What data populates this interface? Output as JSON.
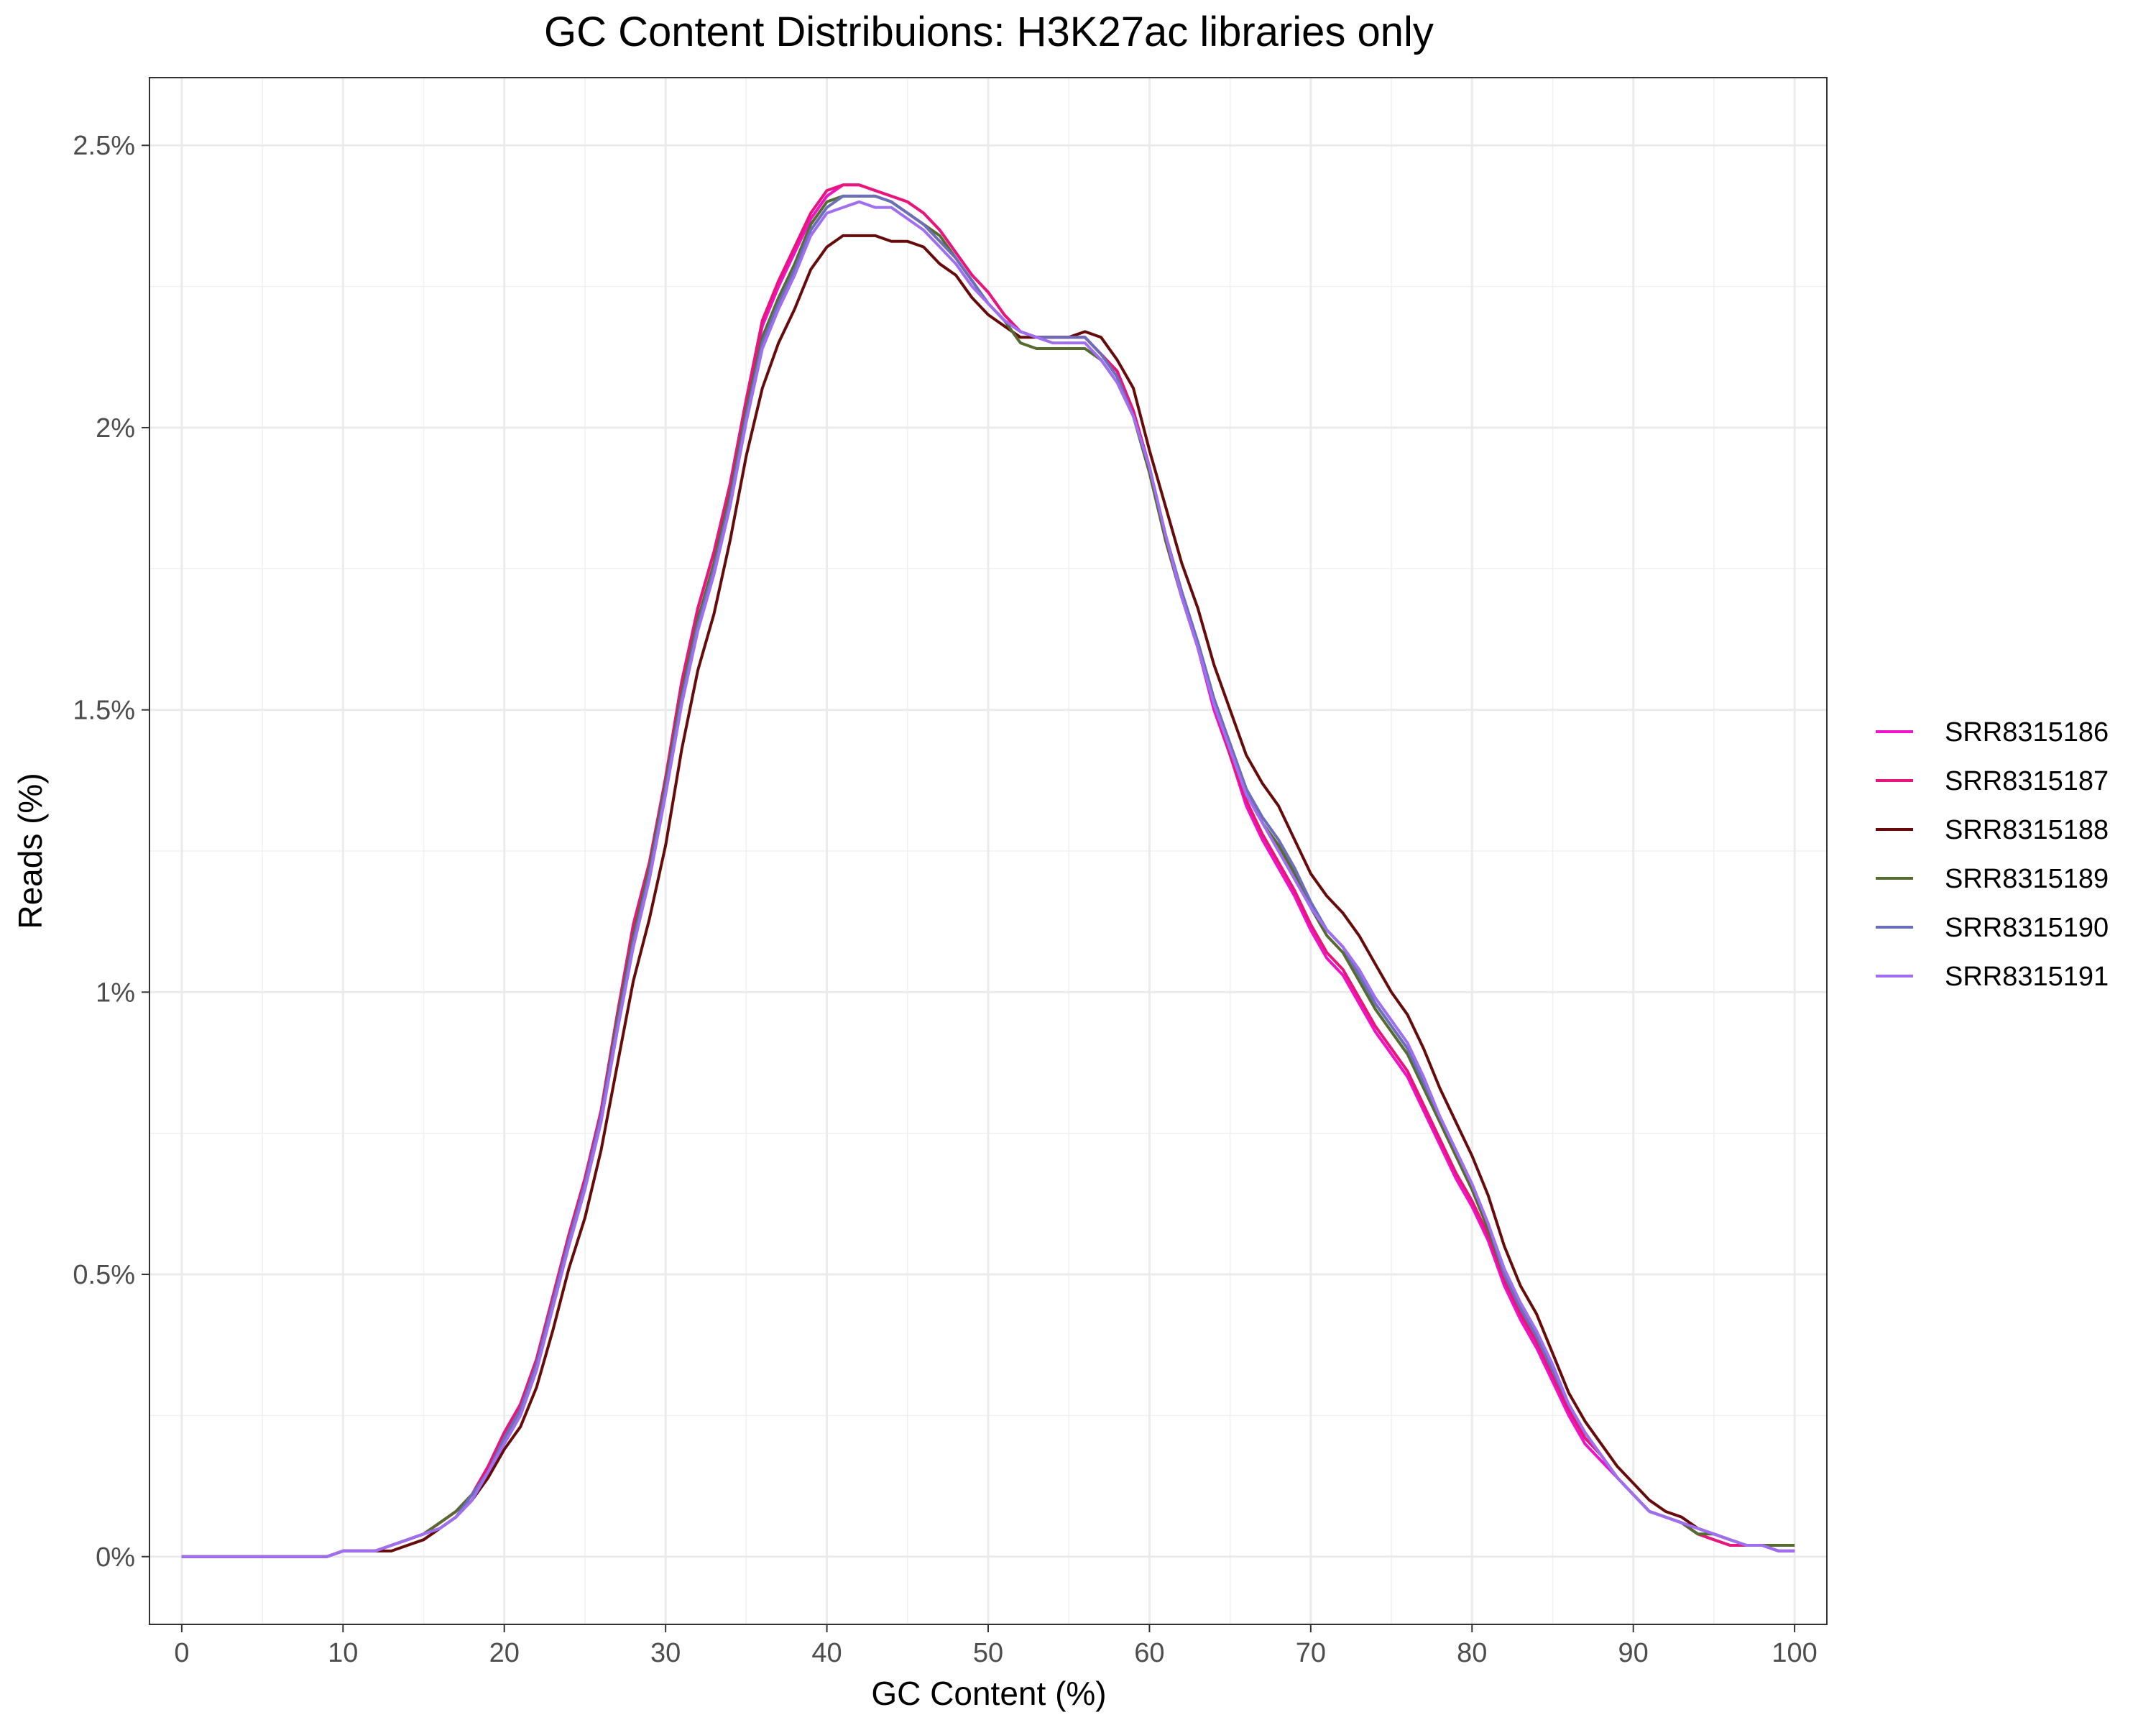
{
  "chart_data": {
    "type": "line",
    "title": "GC Content Distribuions: H3K27ac libraries only",
    "xlabel": "GC Content (%)",
    "ylabel": "Reads (%)",
    "xlim": [
      -2,
      102
    ],
    "ylim": [
      -0.12,
      2.62
    ],
    "x_ticks": [
      0,
      10,
      20,
      30,
      40,
      50,
      60,
      70,
      80,
      90,
      100
    ],
    "y_ticks": [
      0,
      0.5,
      1,
      1.5,
      2,
      2.5
    ],
    "y_tick_labels": [
      "0%",
      "0.5%",
      "1%",
      "1.5%",
      "2%",
      "2.5%"
    ],
    "grid": true,
    "legend_position": "right",
    "x": [
      0,
      1,
      2,
      3,
      4,
      5,
      6,
      7,
      8,
      9,
      10,
      11,
      12,
      13,
      14,
      15,
      16,
      17,
      18,
      19,
      20,
      21,
      22,
      23,
      24,
      25,
      26,
      27,
      28,
      29,
      30,
      31,
      32,
      33,
      34,
      35,
      36,
      37,
      38,
      39,
      40,
      41,
      42,
      43,
      44,
      45,
      46,
      47,
      48,
      49,
      50,
      51,
      52,
      53,
      54,
      55,
      56,
      57,
      58,
      59,
      60,
      61,
      62,
      63,
      64,
      65,
      66,
      67,
      68,
      69,
      70,
      71,
      72,
      73,
      74,
      75,
      76,
      77,
      78,
      79,
      80,
      81,
      82,
      83,
      84,
      85,
      86,
      87,
      88,
      89,
      90,
      91,
      92,
      93,
      94,
      95,
      96,
      97,
      98,
      99,
      100
    ],
    "series": [
      {
        "name": "SRR8315186",
        "color": "#f012c8",
        "values": [
          0,
          0,
          0,
          0,
          0,
          0,
          0,
          0,
          0,
          0,
          0.01,
          0.01,
          0.01,
          0.02,
          0.03,
          0.04,
          0.06,
          0.08,
          0.11,
          0.16,
          0.22,
          0.27,
          0.35,
          0.46,
          0.57,
          0.67,
          0.79,
          0.96,
          1.12,
          1.23,
          1.38,
          1.55,
          1.68,
          1.78,
          1.9,
          2.05,
          2.18,
          2.25,
          2.31,
          2.37,
          2.41,
          2.43,
          2.43,
          2.42,
          2.41,
          2.4,
          2.38,
          2.35,
          2.31,
          2.27,
          2.24,
          2.2,
          2.17,
          2.16,
          2.16,
          2.16,
          2.16,
          2.13,
          2.1,
          2.03,
          1.93,
          1.8,
          1.7,
          1.61,
          1.5,
          1.42,
          1.33,
          1.27,
          1.22,
          1.17,
          1.11,
          1.06,
          1.03,
          0.98,
          0.93,
          0.89,
          0.85,
          0.79,
          0.73,
          0.67,
          0.62,
          0.56,
          0.48,
          0.42,
          0.37,
          0.31,
          0.25,
          0.2,
          0.17,
          0.14,
          0.11,
          0.08,
          0.07,
          0.06,
          0.04,
          0.03,
          0.02,
          0.02,
          0.02,
          0.01,
          0.01
        ]
      },
      {
        "name": "SRR8315187",
        "color": "#e8157a",
        "values": [
          0,
          0,
          0,
          0,
          0,
          0,
          0,
          0,
          0,
          0,
          0.01,
          0.01,
          0.01,
          0.02,
          0.03,
          0.04,
          0.06,
          0.08,
          0.11,
          0.16,
          0.22,
          0.27,
          0.35,
          0.46,
          0.57,
          0.67,
          0.79,
          0.96,
          1.12,
          1.23,
          1.38,
          1.55,
          1.68,
          1.78,
          1.9,
          2.05,
          2.19,
          2.26,
          2.32,
          2.38,
          2.42,
          2.43,
          2.43,
          2.42,
          2.41,
          2.4,
          2.38,
          2.35,
          2.31,
          2.27,
          2.24,
          2.2,
          2.17,
          2.16,
          2.16,
          2.16,
          2.16,
          2.13,
          2.1,
          2.03,
          1.93,
          1.8,
          1.7,
          1.61,
          1.51,
          1.42,
          1.34,
          1.28,
          1.23,
          1.18,
          1.12,
          1.07,
          1.04,
          0.99,
          0.94,
          0.9,
          0.86,
          0.8,
          0.74,
          0.68,
          0.63,
          0.57,
          0.49,
          0.43,
          0.38,
          0.32,
          0.26,
          0.21,
          0.18,
          0.14,
          0.11,
          0.08,
          0.07,
          0.06,
          0.04,
          0.03,
          0.02,
          0.02,
          0.02,
          0.01,
          0.01
        ]
      },
      {
        "name": "SRR8315188",
        "color": "#660a0a",
        "values": [
          0,
          0,
          0,
          0,
          0,
          0,
          0,
          0,
          0,
          0,
          0.01,
          0.01,
          0.01,
          0.01,
          0.02,
          0.03,
          0.05,
          0.07,
          0.1,
          0.14,
          0.19,
          0.23,
          0.3,
          0.4,
          0.51,
          0.6,
          0.72,
          0.87,
          1.02,
          1.13,
          1.26,
          1.43,
          1.57,
          1.67,
          1.8,
          1.95,
          2.07,
          2.15,
          2.21,
          2.28,
          2.32,
          2.34,
          2.34,
          2.34,
          2.33,
          2.33,
          2.32,
          2.29,
          2.27,
          2.23,
          2.2,
          2.18,
          2.16,
          2.16,
          2.16,
          2.16,
          2.17,
          2.16,
          2.12,
          2.07,
          1.96,
          1.86,
          1.76,
          1.68,
          1.58,
          1.5,
          1.42,
          1.37,
          1.33,
          1.27,
          1.21,
          1.17,
          1.14,
          1.1,
          1.05,
          1.0,
          0.96,
          0.9,
          0.83,
          0.77,
          0.71,
          0.64,
          0.55,
          0.48,
          0.43,
          0.36,
          0.29,
          0.24,
          0.2,
          0.16,
          0.13,
          0.1,
          0.08,
          0.07,
          0.05,
          0.04,
          0.03,
          0.02,
          0.02,
          0.02,
          0.02
        ]
      },
      {
        "name": "SRR8315189",
        "color": "#556b2f",
        "values": [
          0,
          0,
          0,
          0,
          0,
          0,
          0,
          0,
          0,
          0,
          0.01,
          0.01,
          0.01,
          0.02,
          0.03,
          0.04,
          0.06,
          0.08,
          0.11,
          0.15,
          0.21,
          0.26,
          0.34,
          0.45,
          0.56,
          0.66,
          0.78,
          0.95,
          1.1,
          1.22,
          1.37,
          1.53,
          1.66,
          1.76,
          1.88,
          2.03,
          2.16,
          2.23,
          2.29,
          2.36,
          2.4,
          2.41,
          2.41,
          2.41,
          2.4,
          2.38,
          2.36,
          2.34,
          2.3,
          2.26,
          2.22,
          2.19,
          2.15,
          2.14,
          2.14,
          2.14,
          2.14,
          2.12,
          2.08,
          2.02,
          1.92,
          1.8,
          1.7,
          1.62,
          1.52,
          1.44,
          1.36,
          1.3,
          1.26,
          1.21,
          1.15,
          1.1,
          1.07,
          1.02,
          0.97,
          0.93,
          0.89,
          0.83,
          0.77,
          0.71,
          0.65,
          0.58,
          0.5,
          0.44,
          0.39,
          0.33,
          0.27,
          0.22,
          0.18,
          0.14,
          0.11,
          0.08,
          0.07,
          0.06,
          0.04,
          0.04,
          0.03,
          0.02,
          0.02,
          0.02,
          0.02
        ]
      },
      {
        "name": "SRR8315190",
        "color": "#6a6fb8",
        "values": [
          0,
          0,
          0,
          0,
          0,
          0,
          0,
          0,
          0,
          0,
          0.01,
          0.01,
          0.01,
          0.02,
          0.03,
          0.04,
          0.05,
          0.07,
          0.11,
          0.15,
          0.21,
          0.26,
          0.34,
          0.45,
          0.56,
          0.66,
          0.78,
          0.94,
          1.09,
          1.21,
          1.36,
          1.52,
          1.65,
          1.75,
          1.87,
          2.02,
          2.15,
          2.22,
          2.28,
          2.35,
          2.39,
          2.41,
          2.41,
          2.41,
          2.4,
          2.38,
          2.36,
          2.33,
          2.3,
          2.26,
          2.22,
          2.19,
          2.17,
          2.16,
          2.16,
          2.16,
          2.16,
          2.13,
          2.09,
          2.02,
          1.93,
          1.81,
          1.71,
          1.62,
          1.52,
          1.44,
          1.36,
          1.31,
          1.27,
          1.22,
          1.16,
          1.11,
          1.08,
          1.03,
          0.98,
          0.94,
          0.9,
          0.84,
          0.78,
          0.72,
          0.66,
          0.59,
          0.5,
          0.44,
          0.39,
          0.33,
          0.27,
          0.22,
          0.18,
          0.14,
          0.11,
          0.08,
          0.07,
          0.06,
          0.05,
          0.04,
          0.03,
          0.02,
          0.02,
          0.01,
          0.01
        ]
      },
      {
        "name": "SRR8315191",
        "color": "#a06ef0",
        "values": [
          0,
          0,
          0,
          0,
          0,
          0,
          0,
          0,
          0,
          0,
          0.01,
          0.01,
          0.01,
          0.02,
          0.03,
          0.04,
          0.05,
          0.07,
          0.1,
          0.15,
          0.2,
          0.25,
          0.33,
          0.44,
          0.55,
          0.65,
          0.77,
          0.93,
          1.08,
          1.2,
          1.35,
          1.51,
          1.64,
          1.74,
          1.86,
          2.01,
          2.14,
          2.21,
          2.27,
          2.34,
          2.38,
          2.39,
          2.4,
          2.39,
          2.39,
          2.37,
          2.35,
          2.32,
          2.29,
          2.25,
          2.22,
          2.19,
          2.17,
          2.16,
          2.15,
          2.15,
          2.15,
          2.12,
          2.08,
          2.02,
          1.93,
          1.81,
          1.7,
          1.61,
          1.51,
          1.43,
          1.35,
          1.3,
          1.25,
          1.2,
          1.15,
          1.11,
          1.08,
          1.04,
          0.99,
          0.95,
          0.91,
          0.85,
          0.78,
          0.72,
          0.66,
          0.59,
          0.51,
          0.45,
          0.4,
          0.34,
          0.27,
          0.22,
          0.18,
          0.14,
          0.11,
          0.08,
          0.07,
          0.06,
          0.05,
          0.04,
          0.03,
          0.02,
          0.02,
          0.01,
          0.01
        ]
      }
    ]
  }
}
